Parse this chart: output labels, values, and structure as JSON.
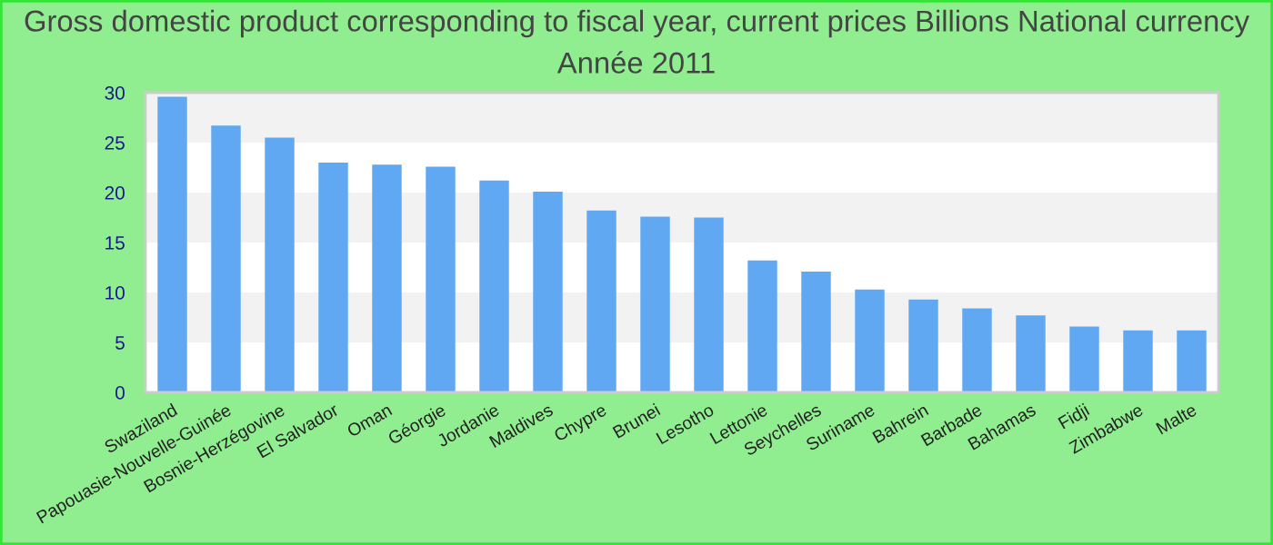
{
  "chart_data": {
    "type": "bar",
    "title": "Gross domestic product corresponding to fiscal year, current prices Billions National currency",
    "subtitle": "Année 2011",
    "categories": [
      "Swaziland",
      "Papouasie-Nouvelle-Guinée",
      "Bosnie-Herzégovine",
      "El Salvador",
      "Oman",
      "Géorgie",
      "Jordanie",
      "Maldives",
      "Chypre",
      "Brunei",
      "Lesotho",
      "Lettonie",
      "Seychelles",
      "Suriname",
      "Bahrein",
      "Barbade",
      "Bahamas",
      "Fidji",
      "Zimbabwe",
      "Malte"
    ],
    "values": [
      29.6,
      26.7,
      25.5,
      23.0,
      22.8,
      22.6,
      21.2,
      20.1,
      18.2,
      17.6,
      17.5,
      13.2,
      12.1,
      10.3,
      9.3,
      8.4,
      7.7,
      6.6,
      6.2,
      6.2
    ],
    "color": "#61a8f3",
    "ylim": [
      0,
      30
    ],
    "yticks": [
      0,
      5,
      10,
      15,
      20,
      25,
      30
    ],
    "bands": [
      {
        "axis": "y",
        "from": 5,
        "to": 10,
        "color": "#f2f2f2"
      },
      {
        "axis": "y",
        "from": 15,
        "to": 20,
        "color": "#f2f2f2"
      },
      {
        "axis": "y",
        "from": 25,
        "to": 30,
        "color": "#f2f2f2"
      }
    ]
  }
}
